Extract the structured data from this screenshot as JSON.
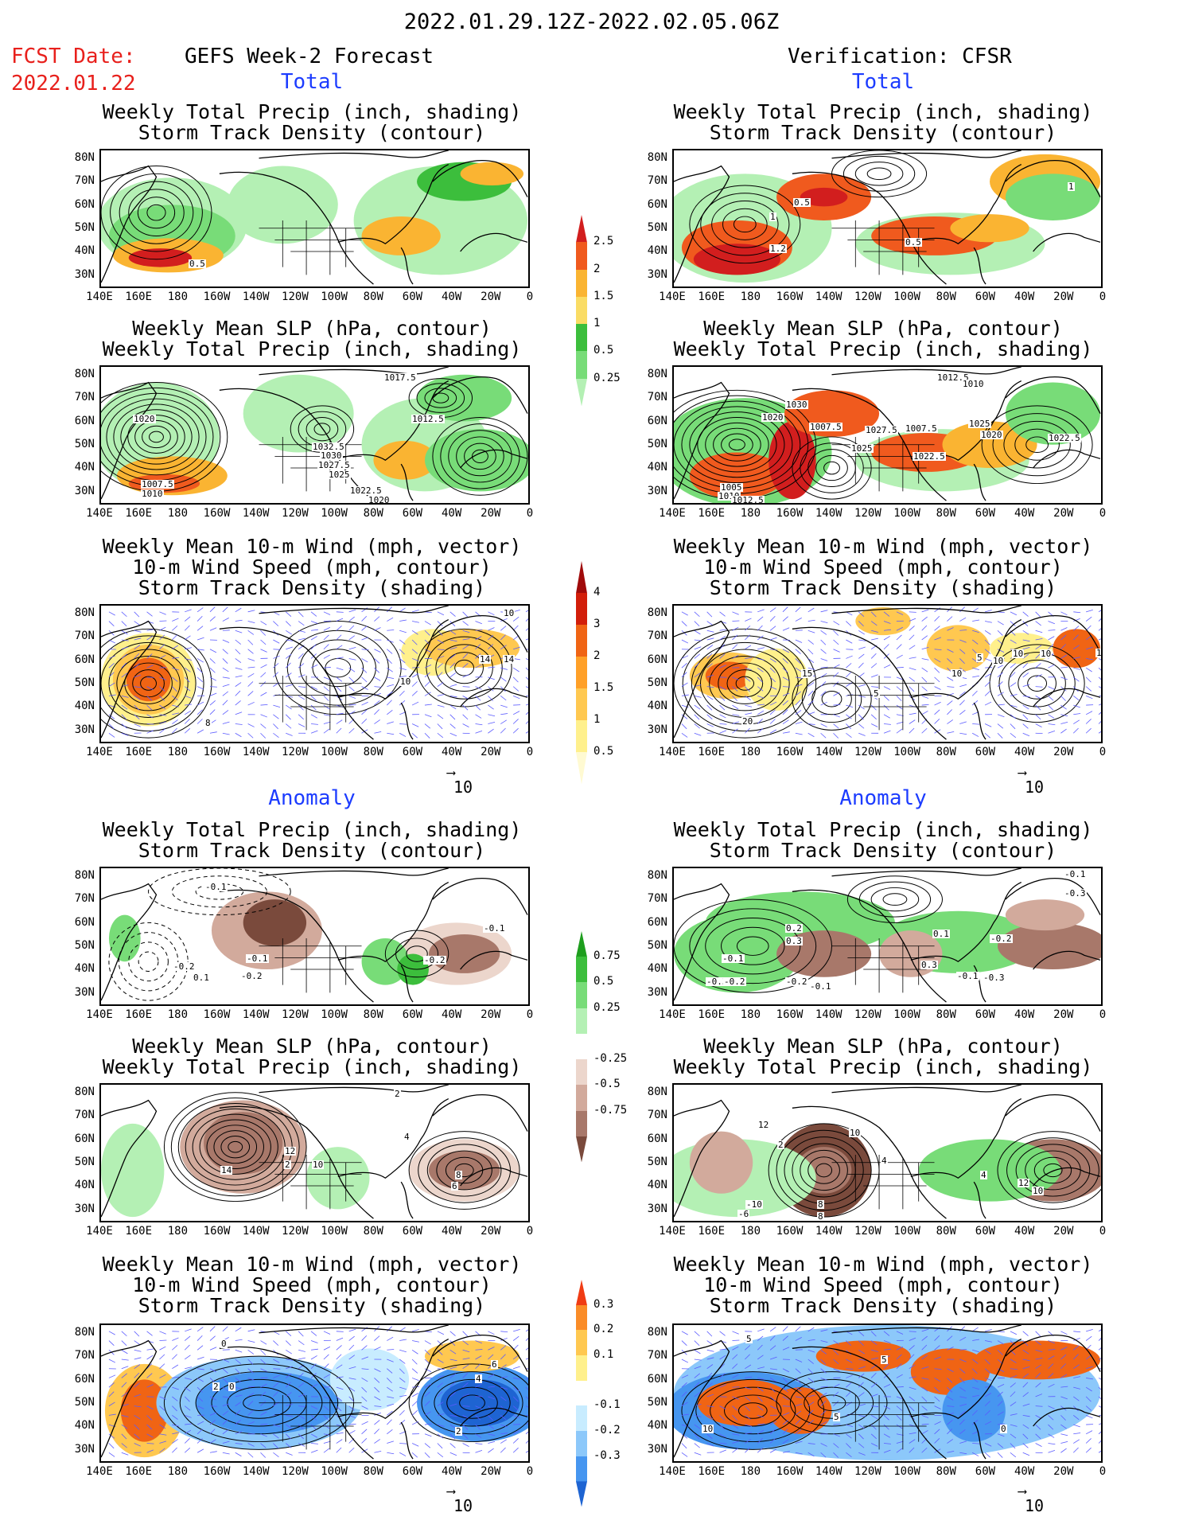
{
  "header": {
    "period": "2022.01.29.12Z-2022.02.05.06Z",
    "fcst_date_label": "FCST Date:",
    "fcst_date": "2022.01.22",
    "left_column": "GEFS Week-2 Forecast",
    "right_column": "Verification: CFSR",
    "total_label": "Total",
    "anomaly_label": "Anomaly"
  },
  "panel_titles": {
    "precip_track": [
      "Weekly Total Precip (inch, shading)",
      "Storm Track Density (contour)"
    ],
    "slp_precip": [
      "Weekly Mean SLP (hPa, contour)",
      "Weekly Total Precip (inch, shading)"
    ],
    "wind_track": [
      "Weekly Mean 10-m Wind (mph, vector)",
      "10-m Wind Speed (mph, contour)",
      "Storm Track Density (shading)"
    ]
  },
  "axes": {
    "lat_labels": [
      "80N",
      "70N",
      "60N",
      "50N",
      "40N",
      "30N"
    ],
    "lon_labels": [
      "140E",
      "160E",
      "180",
      "160W",
      "140W",
      "120W",
      "100W",
      "80W",
      "60W",
      "40W",
      "20W",
      "0"
    ]
  },
  "vector_scale": "10",
  "colorbars": {
    "total_precip": {
      "labels": [
        "0.25",
        "0.5",
        "1",
        "1.5",
        "2",
        "2.5"
      ],
      "colors": [
        "#b4f0b4",
        "#78dc78",
        "#3cbe3c",
        "#fadc64",
        "#fab432",
        "#f05a1e",
        "#d21e1e"
      ]
    },
    "total_track": {
      "labels": [
        "0.5",
        "1",
        "1.5",
        "2",
        "3",
        "4"
      ],
      "colors": [
        "#fffad2",
        "#fff08c",
        "#ffc850",
        "#ffa028",
        "#f06414",
        "#d21e0a",
        "#a00a0a"
      ]
    },
    "anom_precip": {
      "labels": [
        "-0.75",
        "-0.5",
        "-0.25",
        "0.25",
        "0.5",
        "0.75"
      ],
      "colors": [
        "#7a4a3c",
        "#a8786a",
        "#d2aa9c",
        "#ecd6cc",
        "#ffffff",
        "#b4f0b4",
        "#78dc78",
        "#3cbe3c",
        "#1e9e1e"
      ]
    },
    "anom_track": {
      "labels": [
        "-0.3",
        "-0.2",
        "-0.1",
        "0.1",
        "0.2",
        "0.3"
      ],
      "colors": [
        "#1e64d2",
        "#4696f0",
        "#8cc8fa",
        "#c8ecff",
        "#ffffff",
        "#fff08c",
        "#ffc850",
        "#fa8c28",
        "#f03c14"
      ]
    }
  },
  "panels": {
    "fc_total_precip_labels": [
      "0.5"
    ],
    "ob_total_precip_labels": [
      "0.5",
      "1",
      "1.2",
      "0.5",
      "1"
    ],
    "fc_total_slp_labels": [
      "1020",
      "1017.5",
      "1012.5",
      "1032.5",
      "1030",
      "1027.5",
      "1025",
      "1022.5",
      "1020",
      "1007.5",
      "1010"
    ],
    "ob_total_slp_labels": [
      "1012.5",
      "1010",
      "1030",
      "1020",
      "1007.5",
      "1027.5",
      "1025",
      "1022.5",
      "1025",
      "1007.5",
      "1020",
      "1022.5",
      "1005",
      "1010",
      "1012.5"
    ],
    "fc_total_wind_labels": [
      "10",
      "14",
      "8",
      "10",
      "14"
    ],
    "ob_total_wind_labels": [
      "5",
      "10",
      "10",
      "15",
      "10",
      "15",
      "20",
      "5",
      "10"
    ],
    "fc_anom_precip_labels": [
      "-0.1",
      "-0.1",
      "-0.2",
      "-0.1",
      "-0.2",
      "0.1",
      "-0.2"
    ],
    "ob_anom_precip_labels": [
      "-0.1",
      "-0.3",
      "0.2",
      "0.3",
      "-0.1",
      "-0.3",
      "-0.2",
      "-0.2",
      "-0.1",
      "0.1",
      "-0.2",
      "0.3",
      "-0.1",
      "-0.3"
    ],
    "fc_anom_slp_labels": [
      "2",
      "4",
      "12",
      "10",
      "14",
      "2",
      "8",
      "6"
    ],
    "ob_anom_slp_labels": [
      "12",
      "2",
      "10",
      "4",
      "8",
      "-10",
      "-6",
      "8",
      "4",
      "12",
      "10"
    ],
    "fc_anom_wind_labels": [
      "0",
      "2",
      "0",
      "2",
      "4",
      "6"
    ],
    "ob_anom_wind_labels": [
      "5",
      "5",
      "10",
      "5",
      "0"
    ]
  }
}
